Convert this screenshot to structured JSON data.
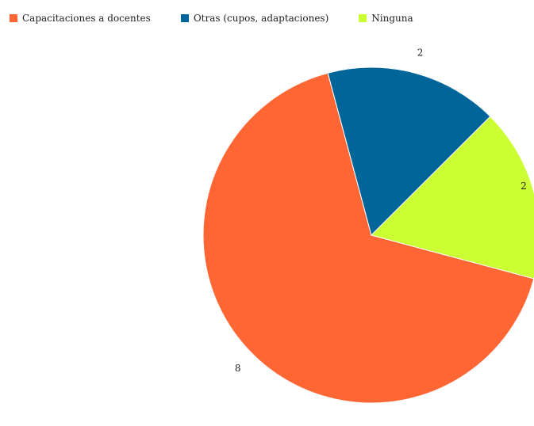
{
  "chart_data": {
    "type": "pie",
    "categories": [
      "Capacitaciones a docentes",
      "Otras (cupos, adaptaciones)",
      "Ninguna"
    ],
    "values": [
      8,
      2,
      2
    ],
    "colors": [
      "#ff6633",
      "#006699",
      "#ccff33"
    ],
    "data_labels": [
      "8",
      "2",
      "2"
    ],
    "legend": {
      "position": "top-left",
      "items": [
        {
          "label": "Capacitaciones a docentes",
          "color": "#ff6633"
        },
        {
          "label": "Otras (cupos, adaptaciones)",
          "color": "#006699"
        },
        {
          "label": "Ninguna",
          "color": "#ccff33"
        }
      ]
    },
    "grid": false
  }
}
